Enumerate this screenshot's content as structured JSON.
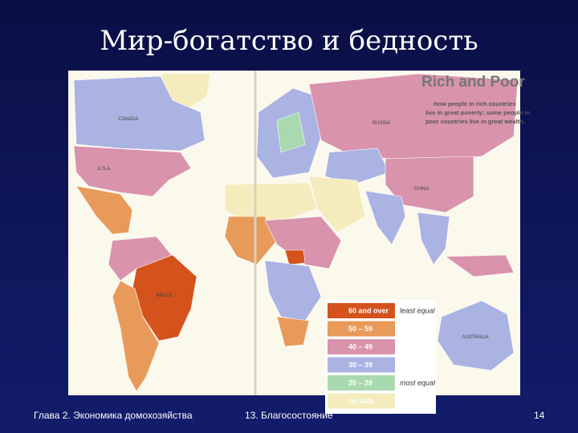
{
  "slide": {
    "title": "Мир-богатство и бедность",
    "footer": {
      "left": "Глава 2. Экономика домохозяйства",
      "center": "13. Благосостояние",
      "page": "14"
    }
  },
  "map": {
    "title": "Rich and Poor",
    "subtitle": [
      "How people in rich countries",
      "live in great poverty; some people in",
      "poor countries live in great wealth."
    ],
    "country_labels": [
      "CANADA",
      "U.S.A.",
      "BRAZIL",
      "RUSSIA",
      "CHINA",
      "AUSTRALIA"
    ],
    "legend": {
      "items": [
        {
          "label": "60 and over",
          "color": "#d4531c"
        },
        {
          "label": "50 – 59",
          "color": "#e89a5a"
        },
        {
          "label": "40 – 49",
          "color": "#d993ad"
        },
        {
          "label": "30 – 39",
          "color": "#aab3e2"
        },
        {
          "label": "20 – 29",
          "color": "#a9d9ae"
        },
        {
          "label": "no data",
          "color": "#f4ecbd"
        }
      ],
      "top_note": "least equal",
      "bottom_note": "most equal"
    }
  }
}
